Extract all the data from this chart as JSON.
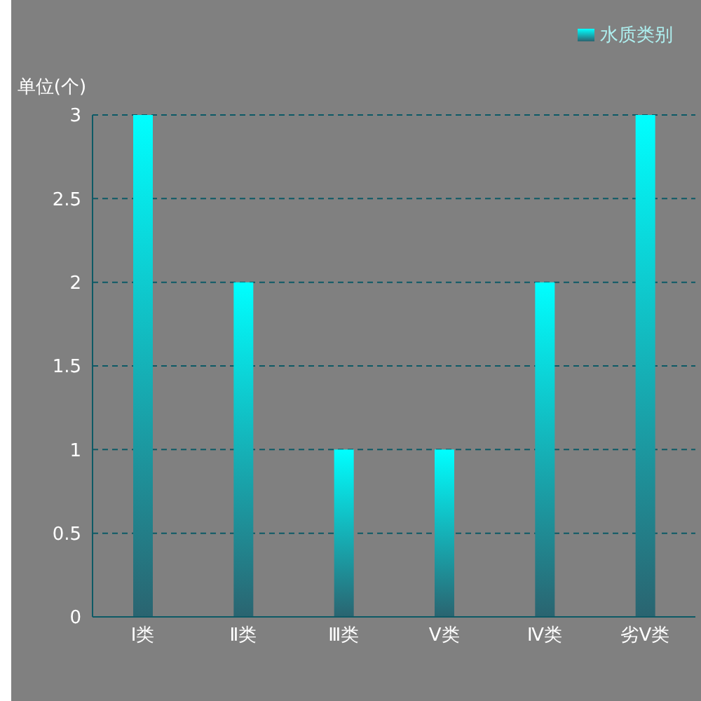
{
  "chart_data": {
    "type": "bar",
    "ylabel": "单位(个)",
    "categories": [
      "Ⅰ类",
      "Ⅱ类",
      "Ⅲ类",
      "Ⅴ类",
      "Ⅳ类",
      "劣Ⅴ类"
    ],
    "series": [
      {
        "name": "水质类别",
        "color": "#00ffff",
        "values": [
          3,
          2,
          1,
          1,
          2,
          3
        ]
      }
    ],
    "ylim": [
      0,
      3
    ],
    "yticks": [
      0,
      0.5,
      1,
      1.5,
      2,
      2.5,
      3
    ],
    "grid": "y",
    "legend": "top right"
  }
}
